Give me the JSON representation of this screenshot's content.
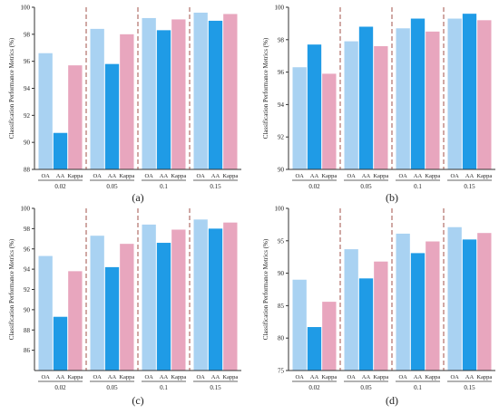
{
  "colors": {
    "OA": "#a9d2f2",
    "AA": "#1f9be6",
    "Kappa": "#e8a6be",
    "divider": "#a0524a",
    "axis": "#333333"
  },
  "chart_data": [
    {
      "type": "bar",
      "panel_label": "(a)",
      "ylabel": "Classification Performance Metrics (%)",
      "ylim": [
        88,
        100
      ],
      "yticks": [
        88,
        90,
        92,
        94,
        96,
        98,
        100
      ],
      "metrics": [
        "OA",
        "AA",
        "Kappa"
      ],
      "groups": [
        "0.02",
        "0.05",
        "0.1",
        "0.15"
      ],
      "series": [
        {
          "name": "OA",
          "values": [
            96.6,
            98.4,
            99.2,
            99.6
          ]
        },
        {
          "name": "AA",
          "values": [
            90.7,
            95.8,
            98.3,
            99.0
          ]
        },
        {
          "name": "Kappa",
          "values": [
            95.7,
            98.0,
            99.1,
            99.5
          ]
        }
      ]
    },
    {
      "type": "bar",
      "panel_label": "(b)",
      "ylabel": "Classification Performance Metrics (%)",
      "ylim": [
        90,
        100
      ],
      "yticks": [
        90,
        92,
        94,
        96,
        98,
        100
      ],
      "metrics": [
        "OA",
        "AA",
        "Kappa"
      ],
      "groups": [
        "0.02",
        "0.05",
        "0.1",
        "0.15"
      ],
      "series": [
        {
          "name": "OA",
          "values": [
            96.3,
            97.9,
            98.7,
            99.3
          ]
        },
        {
          "name": "AA",
          "values": [
            97.7,
            98.8,
            99.3,
            99.6
          ]
        },
        {
          "name": "Kappa",
          "values": [
            95.9,
            97.6,
            98.5,
            99.2
          ]
        }
      ]
    },
    {
      "type": "bar",
      "panel_label": "(c)",
      "ylabel": "Classification Performance Metrics (%)",
      "ylim": [
        84,
        100
      ],
      "yticks": [
        86,
        88,
        90,
        92,
        94,
        96,
        98,
        100
      ],
      "metrics": [
        "OA",
        "AA",
        "Kappa"
      ],
      "groups": [
        "0.02",
        "0.05",
        "0.1",
        "0.15"
      ],
      "series": [
        {
          "name": "OA",
          "values": [
            95.3,
            97.3,
            98.4,
            98.9
          ]
        },
        {
          "name": "AA",
          "values": [
            89.3,
            94.2,
            96.6,
            98.0
          ]
        },
        {
          "name": "Kappa",
          "values": [
            93.8,
            96.5,
            97.9,
            98.6
          ]
        }
      ]
    },
    {
      "type": "bar",
      "panel_label": "(d)",
      "ylabel": "Classification Performance Metrics (%)",
      "ylim": [
        75,
        100
      ],
      "yticks": [
        75,
        80,
        85,
        90,
        95,
        100
      ],
      "metrics": [
        "OA",
        "AA",
        "Kappa"
      ],
      "groups": [
        "0.02",
        "0.05",
        "0.1",
        "0.15"
      ],
      "series": [
        {
          "name": "OA",
          "values": [
            89.0,
            93.7,
            96.1,
            97.1
          ]
        },
        {
          "name": "AA",
          "values": [
            81.7,
            89.2,
            93.1,
            95.2
          ]
        },
        {
          "name": "Kappa",
          "values": [
            85.6,
            91.8,
            94.9,
            96.2
          ]
        }
      ]
    }
  ]
}
